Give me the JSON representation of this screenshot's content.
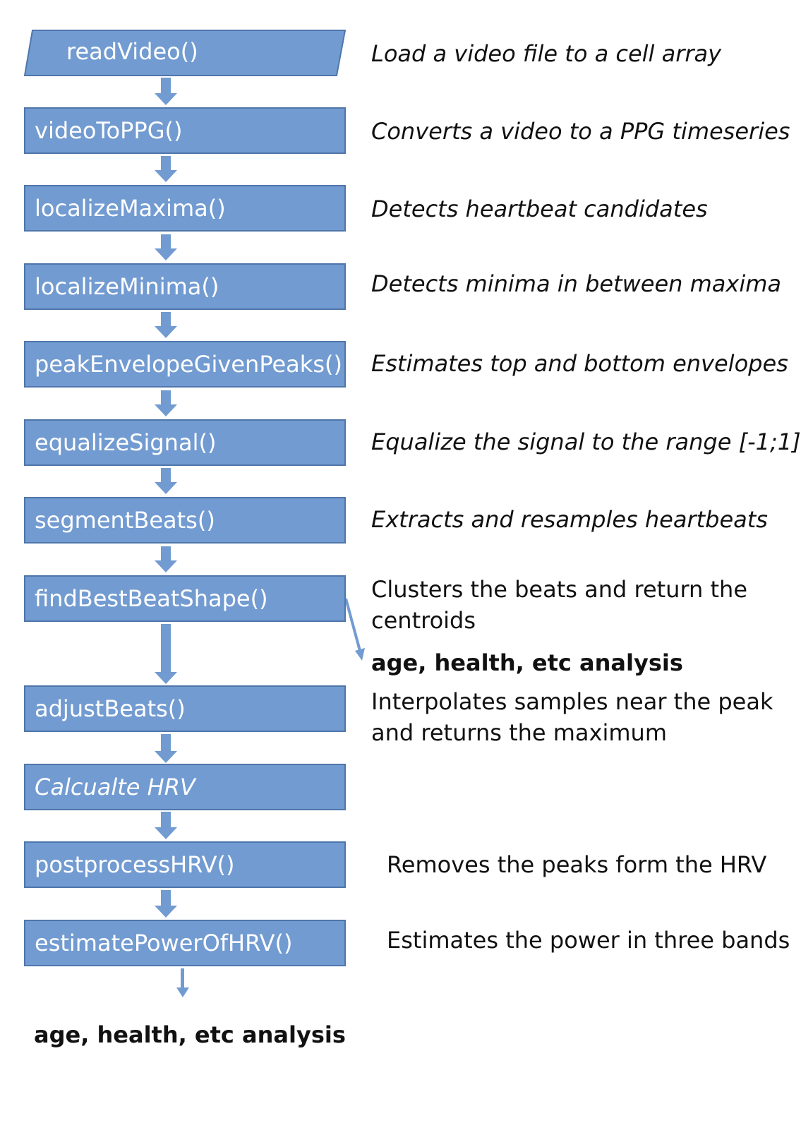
{
  "steps": [
    {
      "label": "readVideo()",
      "description": "Load a video file to a cell array"
    },
    {
      "label": "videoToPPG()",
      "description": "Converts a video to a PPG timeseries"
    },
    {
      "label": "localizeMaxima()",
      "description": "Detects heartbeat candidates"
    },
    {
      "label": "localizeMinima()",
      "description": "Detects minima in between maxima"
    },
    {
      "label": "peakEnvelopeGivenPeaks()",
      "description": "Estimates top and bottom envelopes"
    },
    {
      "label": "equalizeSignal()",
      "description": "Equalize the signal to the range [-1;1]"
    },
    {
      "label": "segmentBeats()",
      "description": "Extracts and resamples heartbeats"
    },
    {
      "label": "findBestBeatShape()",
      "description_line1": "Clusters the beats and return the",
      "description_line2": "centroids",
      "side_output": "age, health, etc analysis"
    },
    {
      "label": "adjustBeats()",
      "description_line1": "Interpolates samples near the peak",
      "description_line2": "and returns the maximum"
    },
    {
      "label": "Calcualte HRV"
    },
    {
      "label": "postprocessHRV()",
      "description": "Removes the peaks form the HRV"
    },
    {
      "label": "estimatePowerOfHRV()",
      "description": "Estimates the power in three bands"
    }
  ],
  "final_output": "age, health, etc analysis",
  "colors": {
    "box_fill": "#729bd1",
    "box_border": "#4f76ab",
    "arrow": "#729bd1",
    "text_on_box": "#ffffff"
  }
}
